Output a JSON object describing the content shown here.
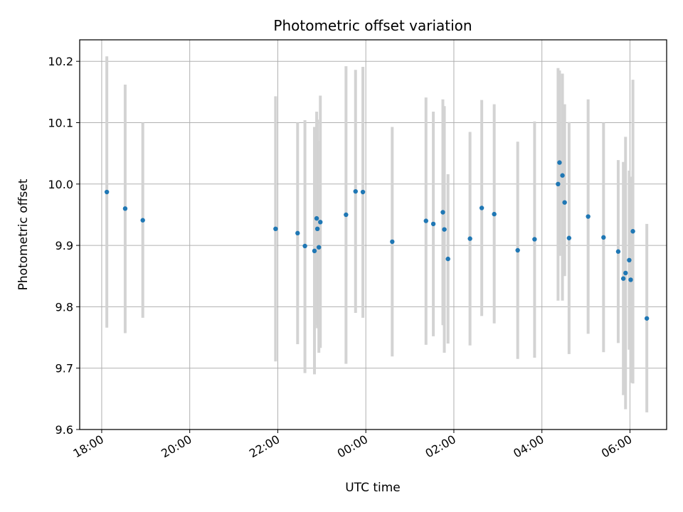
{
  "chart_data": {
    "type": "scatter",
    "title": "Photometric offset variation",
    "xlabel": "UTC time",
    "ylabel": "Photometric offset",
    "x_ticks": [
      "18:00",
      "20:00",
      "22:00",
      "00:00",
      "02:00",
      "04:00",
      "06:00"
    ],
    "y_ticks": [
      "9.6",
      "9.7",
      "9.8",
      "9.9",
      "10.0",
      "10.1",
      "10.2"
    ],
    "xlim": [
      "17:30",
      "06:50"
    ],
    "ylim": [
      9.6,
      10.235
    ],
    "grid": true,
    "colors": {
      "points": "#1f77b4",
      "errorbars": "#d3d3d3",
      "grid": "#b0b0b0"
    },
    "points": [
      {
        "x": "18:07",
        "y": 9.987,
        "lo": 9.766,
        "hi": 10.208
      },
      {
        "x": "18:32",
        "y": 9.96,
        "lo": 9.757,
        "hi": 10.162
      },
      {
        "x": "18:56",
        "y": 9.941,
        "lo": 9.782,
        "hi": 10.1
      },
      {
        "x": "21:57",
        "y": 9.927,
        "lo": 9.711,
        "hi": 10.143
      },
      {
        "x": "22:27",
        "y": 9.92,
        "lo": 9.739,
        "hi": 10.1
      },
      {
        "x": "22:37",
        "y": 9.899,
        "lo": 9.692,
        "hi": 10.104
      },
      {
        "x": "22:50",
        "y": 9.891,
        "lo": 9.69,
        "hi": 10.093
      },
      {
        "x": "22:53",
        "y": 9.944,
        "lo": 9.77,
        "hi": 10.118
      },
      {
        "x": "22:54",
        "y": 9.927,
        "lo": 9.765,
        "hi": 10.105
      },
      {
        "x": "22:56",
        "y": 9.897,
        "lo": 9.725,
        "hi": 10.07
      },
      {
        "x": "22:58",
        "y": 9.938,
        "lo": 9.733,
        "hi": 10.144
      },
      {
        "x": "23:33",
        "y": 9.95,
        "lo": 9.707,
        "hi": 10.192
      },
      {
        "x": "23:46",
        "y": 9.988,
        "lo": 9.79,
        "hi": 10.186
      },
      {
        "x": "23:56",
        "y": 9.987,
        "lo": 9.782,
        "hi": 10.191
      },
      {
        "x": "00:36",
        "y": 9.906,
        "lo": 9.719,
        "hi": 10.093
      },
      {
        "x": "01:22",
        "y": 9.94,
        "lo": 9.738,
        "hi": 10.141
      },
      {
        "x": "01:32",
        "y": 9.935,
        "lo": 9.752,
        "hi": 10.118
      },
      {
        "x": "01:45",
        "y": 9.954,
        "lo": 9.77,
        "hi": 10.138
      },
      {
        "x": "01:47",
        "y": 9.926,
        "lo": 9.725,
        "hi": 10.127
      },
      {
        "x": "01:52",
        "y": 9.878,
        "lo": 9.74,
        "hi": 10.016
      },
      {
        "x": "02:22",
        "y": 9.911,
        "lo": 9.737,
        "hi": 10.085
      },
      {
        "x": "02:38",
        "y": 9.961,
        "lo": 9.785,
        "hi": 10.137
      },
      {
        "x": "02:55",
        "y": 9.951,
        "lo": 9.773,
        "hi": 10.13
      },
      {
        "x": "03:27",
        "y": 9.892,
        "lo": 9.715,
        "hi": 10.069
      },
      {
        "x": "03:50",
        "y": 9.91,
        "lo": 9.717,
        "hi": 10.102
      },
      {
        "x": "04:22",
        "y": 10.0,
        "lo": 9.81,
        "hi": 10.189
      },
      {
        "x": "04:24",
        "y": 10.035,
        "lo": 9.883,
        "hi": 10.185
      },
      {
        "x": "04:28",
        "y": 10.014,
        "lo": 9.81,
        "hi": 10.18
      },
      {
        "x": "04:31",
        "y": 9.97,
        "lo": 9.85,
        "hi": 10.13
      },
      {
        "x": "04:37",
        "y": 9.912,
        "lo": 9.723,
        "hi": 10.101
      },
      {
        "x": "05:03",
        "y": 9.947,
        "lo": 9.756,
        "hi": 10.138
      },
      {
        "x": "05:24",
        "y": 9.913,
        "lo": 9.726,
        "hi": 10.1
      },
      {
        "x": "05:44",
        "y": 9.89,
        "lo": 9.741,
        "hi": 10.039
      },
      {
        "x": "05:51",
        "y": 9.846,
        "lo": 9.656,
        "hi": 10.036
      },
      {
        "x": "05:54",
        "y": 9.855,
        "lo": 9.633,
        "hi": 10.077
      },
      {
        "x": "05:59",
        "y": 9.876,
        "lo": 9.73,
        "hi": 10.022
      },
      {
        "x": "06:01",
        "y": 9.844,
        "lo": 9.676,
        "hi": 10.012
      },
      {
        "x": "06:04",
        "y": 9.923,
        "lo": 9.675,
        "hi": 10.17
      },
      {
        "x": "06:23",
        "y": 9.781,
        "lo": 9.628,
        "hi": 9.935
      }
    ]
  }
}
